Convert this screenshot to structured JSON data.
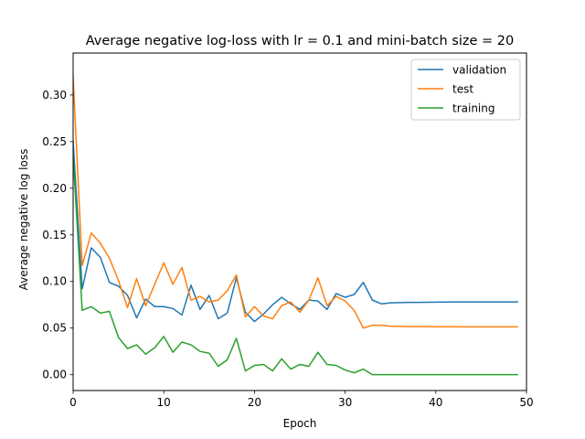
{
  "chart_data": {
    "type": "line",
    "title": "Average negative log-loss with lr = 0.1 and mini-batch size = 20",
    "xlabel": "Epoch",
    "ylabel": "Average negative log loss",
    "xlim": [
      0,
      50
    ],
    "ylim": [
      -0.017,
      0.345
    ],
    "xticks": [
      0,
      10,
      20,
      30,
      40,
      50
    ],
    "yticks": [
      0.0,
      0.05,
      0.1,
      0.15,
      0.2,
      0.25,
      0.3
    ],
    "xtick_labels": [
      "0",
      "10",
      "20",
      "30",
      "40",
      "50"
    ],
    "ytick_labels": [
      "0.00",
      "0.05",
      "0.10",
      "0.15",
      "0.20",
      "0.25",
      "0.30"
    ],
    "grid": false,
    "legend_position": "top-right",
    "x": [
      0,
      1,
      2,
      3,
      4,
      5,
      6,
      7,
      8,
      9,
      10,
      11,
      12,
      13,
      14,
      15,
      16,
      17,
      18,
      19,
      20,
      21,
      22,
      23,
      24,
      25,
      26,
      27,
      28,
      29,
      30,
      31,
      32,
      33,
      34,
      35,
      36,
      37,
      38,
      39,
      40,
      41,
      42,
      43,
      44,
      45,
      46,
      47,
      48,
      49
    ],
    "series": [
      {
        "name": "validation",
        "color": "#1f77b4",
        "values": [
          0.25,
          0.092,
          0.136,
          0.126,
          0.099,
          0.095,
          0.085,
          0.061,
          0.081,
          0.073,
          0.073,
          0.071,
          0.064,
          0.096,
          0.07,
          0.085,
          0.06,
          0.066,
          0.104,
          0.067,
          0.057,
          0.065,
          0.075,
          0.083,
          0.076,
          0.07,
          0.08,
          0.079,
          0.07,
          0.087,
          0.083,
          0.086,
          0.099,
          0.08,
          0.076,
          0.077,
          0.0773,
          0.0775,
          0.0776,
          0.0777,
          0.0778,
          0.0779,
          0.078,
          0.078,
          0.078,
          0.078,
          0.078,
          0.078,
          0.078,
          0.078
        ]
      },
      {
        "name": "test",
        "color": "#ff7f0e",
        "values": [
          0.32,
          0.117,
          0.152,
          0.141,
          0.125,
          0.101,
          0.072,
          0.103,
          0.074,
          0.097,
          0.12,
          0.097,
          0.115,
          0.08,
          0.084,
          0.078,
          0.08,
          0.09,
          0.107,
          0.062,
          0.073,
          0.063,
          0.06,
          0.074,
          0.078,
          0.067,
          0.08,
          0.104,
          0.074,
          0.084,
          0.079,
          0.069,
          0.05,
          0.053,
          0.053,
          0.052,
          0.0518,
          0.0516,
          0.0515,
          0.0515,
          0.0514,
          0.0514,
          0.0514,
          0.0513,
          0.0513,
          0.0513,
          0.0513,
          0.0513,
          0.0513,
          0.0513
        ]
      },
      {
        "name": "training",
        "color": "#2ca02c",
        "values": [
          0.235,
          0.069,
          0.073,
          0.066,
          0.068,
          0.04,
          0.028,
          0.032,
          0.022,
          0.029,
          0.041,
          0.024,
          0.035,
          0.032,
          0.025,
          0.023,
          0.009,
          0.016,
          0.039,
          0.004,
          0.01,
          0.011,
          0.004,
          0.017,
          0.006,
          0.011,
          0.009,
          0.024,
          0.011,
          0.01,
          0.005,
          0.002,
          0.006,
          0.0,
          0.0,
          0.0,
          0.0,
          0.0,
          0.0,
          0.0,
          0.0,
          0.0,
          0.0,
          0.0,
          0.0,
          0.0,
          0.0,
          0.0,
          0.0,
          0.0
        ]
      }
    ]
  }
}
